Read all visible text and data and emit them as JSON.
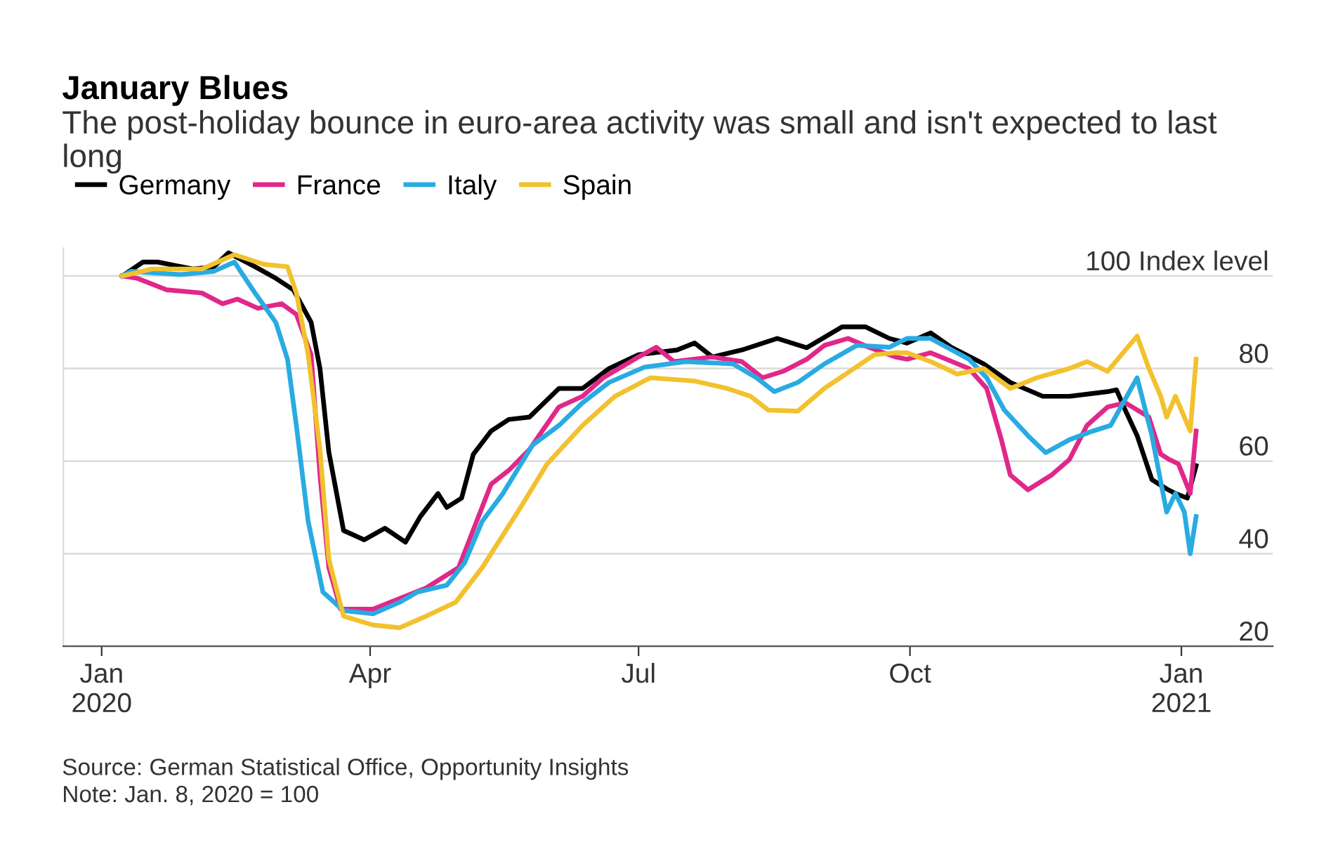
{
  "chart_data": {
    "type": "line",
    "title": "January Blues",
    "subtitle": "The post-holiday bounce in euro-area activity was small and isn't expected to last long",
    "x": [
      "2020-01-08",
      "2020-01-15",
      "2020-01-20",
      "2020-02-01",
      "2020-02-08",
      "2020-02-13",
      "2020-02-22",
      "2020-02-29",
      "2020-03-06",
      "2020-03-12",
      "2020-03-15",
      "2020-03-18",
      "2020-03-23",
      "2020-03-30",
      "2020-04-06",
      "2020-04-13",
      "2020-04-18",
      "2020-04-24",
      "2020-04-27",
      "2020-05-02",
      "2020-05-06",
      "2020-05-12",
      "2020-05-18",
      "2020-05-25",
      "2020-06-04",
      "2020-06-12",
      "2020-06-21",
      "2020-07-01",
      "2020-07-14",
      "2020-07-20",
      "2020-07-26",
      "2020-08-05",
      "2020-08-17",
      "2020-08-27",
      "2020-09-08",
      "2020-09-16",
      "2020-09-24",
      "2020-09-30",
      "2020-10-08",
      "2020-10-15",
      "2020-10-26",
      "2020-11-04",
      "2020-11-15",
      "2020-11-24",
      "2020-12-07",
      "2020-12-10",
      "2020-12-13",
      "2020-12-17",
      "2020-12-22",
      "2020-12-27",
      "2020-12-30",
      "2021-01-03",
      "2021-01-06"
    ],
    "series": [
      {
        "name": "Germany",
        "color": "#000000",
        "values": [
          100,
          103,
          103,
          101.5,
          102,
          105,
          102,
          99.5,
          97,
          90,
          80,
          62,
          45,
          43,
          45.5,
          42.5,
          48,
          53,
          50,
          52,
          61.5,
          66.5,
          69,
          69.5,
          75.7,
          75.7,
          80,
          83,
          84,
          85.5,
          82.5,
          84,
          86.5,
          84.5,
          89,
          89,
          86.5,
          85.5,
          87.7,
          84.6,
          81,
          77,
          74,
          74,
          75,
          75.4,
          71,
          65.5,
          56,
          54,
          53,
          52,
          59
        ]
      },
      {
        "name": "France",
        "color": "#e0288a",
        "x": [
          "2020-01-08",
          "2020-01-13",
          "2020-01-23",
          "2020-02-04",
          "2020-02-11",
          "2020-02-16",
          "2020-02-23",
          "2020-03-02",
          "2020-03-07",
          "2020-03-12",
          "2020-03-15",
          "2020-03-18",
          "2020-03-22",
          "2020-04-02",
          "2020-04-20",
          "2020-05-01",
          "2020-05-12",
          "2020-05-18",
          "2020-05-25",
          "2020-06-04",
          "2020-06-12",
          "2020-06-19",
          "2020-07-01",
          "2020-07-07",
          "2020-07-13",
          "2020-07-26",
          "2020-08-05",
          "2020-08-12",
          "2020-08-19",
          "2020-08-27",
          "2020-09-02",
          "2020-09-10",
          "2020-09-17",
          "2020-09-26",
          "2020-09-30",
          "2020-10-08",
          "2020-10-21",
          "2020-10-27",
          "2020-11-01",
          "2020-11-04",
          "2020-11-10",
          "2020-11-18",
          "2020-11-24",
          "2020-11-30",
          "2020-12-07",
          "2020-12-13",
          "2020-12-21",
          "2020-12-25",
          "2020-12-28",
          "2020-12-31",
          "2021-01-04",
          "2021-01-06"
        ],
        "values": [
          100,
          99.5,
          97,
          96.3,
          94,
          95,
          93,
          94,
          91.7,
          83,
          57,
          37,
          28,
          28,
          32.6,
          37,
          55,
          58,
          62.5,
          71.7,
          74,
          78,
          82.5,
          84.6,
          81.5,
          82.5,
          81.5,
          78,
          79.4,
          82,
          85,
          86.5,
          84.6,
          82.5,
          82,
          83.4,
          80,
          75.7,
          64.6,
          57,
          53.8,
          57,
          60.3,
          67.7,
          71.7,
          72.6,
          69.5,
          61.5,
          60.3,
          59.4,
          53,
          66.5
        ]
      },
      {
        "name": "Italy",
        "color": "#29abe2",
        "x": [
          "2020-01-08",
          "2020-01-11",
          "2020-01-28",
          "2020-02-08",
          "2020-02-15",
          "2020-02-22",
          "2020-02-29",
          "2020-03-04",
          "2020-03-07",
          "2020-03-11",
          "2020-03-16",
          "2020-03-23",
          "2020-04-02",
          "2020-04-11",
          "2020-04-17",
          "2020-04-27",
          "2020-05-03",
          "2020-05-09",
          "2020-05-16",
          "2020-05-26",
          "2020-06-04",
          "2020-06-12",
          "2020-06-21",
          "2020-07-03",
          "2020-07-17",
          "2020-08-02",
          "2020-08-10",
          "2020-08-16",
          "2020-08-24",
          "2020-09-02",
          "2020-09-13",
          "2020-09-24",
          "2020-09-30",
          "2020-10-08",
          "2020-10-21",
          "2020-10-27",
          "2020-11-02",
          "2020-11-10",
          "2020-11-16",
          "2020-11-24",
          "2020-12-02",
          "2020-12-08",
          "2020-12-17",
          "2020-12-22",
          "2020-12-27",
          "2020-12-30",
          "2021-01-02",
          "2021-01-04",
          "2021-01-06"
        ],
        "values": [
          100,
          101,
          100.3,
          101,
          103,
          96.3,
          90,
          82,
          67.7,
          47,
          31.7,
          27.7,
          27,
          29.5,
          31.7,
          33.2,
          38,
          47,
          53,
          63.4,
          67.7,
          72.6,
          77,
          80.3,
          81.5,
          81,
          78,
          75,
          77,
          81,
          85,
          84.6,
          86.5,
          86.5,
          82,
          78,
          71,
          65.5,
          61.8,
          64.6,
          66.5,
          67.7,
          78,
          65.5,
          49,
          53,
          49,
          40,
          48
        ]
      },
      {
        "name": "Spain",
        "color": "#f2c12e",
        "x": [
          "2020-01-08",
          "2020-01-18",
          "2020-02-04",
          "2020-02-15",
          "2020-02-25",
          "2020-03-04",
          "2020-03-07",
          "2020-03-11",
          "2020-03-15",
          "2020-03-18",
          "2020-03-23",
          "2020-04-02",
          "2020-04-11",
          "2020-04-20",
          "2020-04-30",
          "2020-05-09",
          "2020-05-15",
          "2020-05-22",
          "2020-05-31",
          "2020-06-12",
          "2020-06-23",
          "2020-07-05",
          "2020-07-20",
          "2020-07-31",
          "2020-08-08",
          "2020-08-14",
          "2020-08-24",
          "2020-09-02",
          "2020-09-12",
          "2020-09-19",
          "2020-09-26",
          "2020-09-30",
          "2020-10-08",
          "2020-10-17",
          "2020-10-26",
          "2020-11-04",
          "2020-11-13",
          "2020-11-24",
          "2020-11-30",
          "2020-12-07",
          "2020-12-13",
          "2020-12-17",
          "2020-12-21",
          "2020-12-25",
          "2020-12-27",
          "2020-12-30",
          "2021-01-02",
          "2021-01-04",
          "2021-01-06"
        ],
        "values": [
          100,
          101.5,
          101.5,
          104.6,
          102.5,
          102,
          96.3,
          83,
          62.5,
          38.8,
          26.5,
          24.6,
          24,
          26.5,
          29.5,
          37,
          43,
          50,
          59.4,
          67.7,
          74,
          78,
          77.3,
          75.7,
          74,
          71,
          70.8,
          75.7,
          80,
          83,
          83.4,
          83.4,
          81.5,
          78.8,
          80,
          75.7,
          78,
          80,
          81.5,
          79.4,
          84,
          87,
          80,
          74,
          69.5,
          74,
          69.5,
          66.5,
          82
        ]
      }
    ],
    "xlim": [
      "2019-12-19",
      "2021-02-01"
    ],
    "xticks": [
      {
        "value": "2020-01-01",
        "label": "Jan\n2020"
      },
      {
        "value": "2020-04-01",
        "label": "Apr"
      },
      {
        "value": "2020-07-01",
        "label": "Jul"
      },
      {
        "value": "2020-10-01",
        "label": "Oct"
      },
      {
        "value": "2021-01-01",
        "label": "Jan\n2021"
      }
    ],
    "ylim": [
      20,
      106
    ],
    "yticks": [
      20,
      40,
      60,
      80,
      {
        "value": 100,
        "label": "100 Index level"
      }
    ],
    "grid": "y",
    "legend": "top left",
    "line_style": "solid",
    "marker": "none",
    "annotations": [
      "Source: German Statistical Office, Opportunity Insights",
      "Note: Jan. 8, 2020 = 100"
    ]
  }
}
